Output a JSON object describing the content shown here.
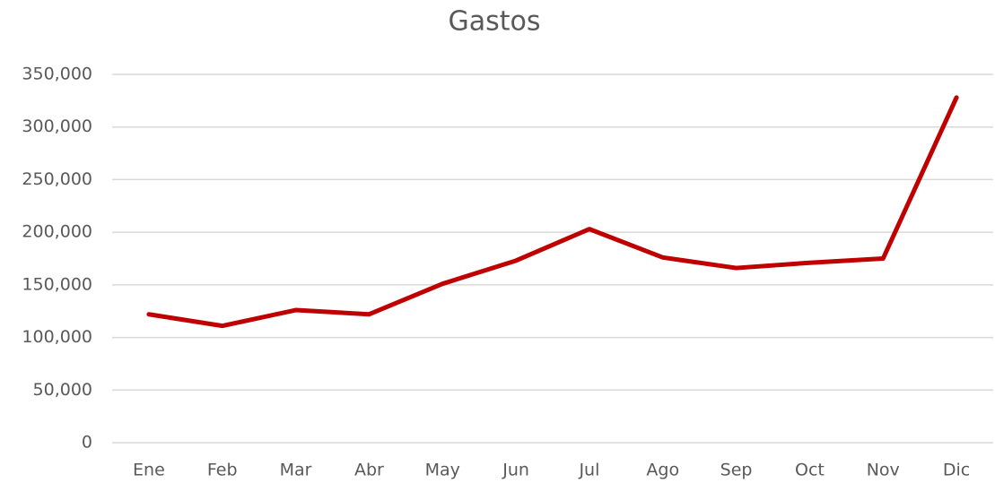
{
  "chart_data": {
    "type": "line",
    "title": "Gastos",
    "categories": [
      "Ene",
      "Feb",
      "Mar",
      "Abr",
      "May",
      "Jun",
      "Jul",
      "Ago",
      "Sep",
      "Oct",
      "Nov",
      "Dic"
    ],
    "series": [
      {
        "name": "Gastos",
        "color": "#c00000",
        "values": [
          122000,
          111000,
          126000,
          122000,
          151000,
          173000,
          203000,
          176000,
          166000,
          171000,
          175000,
          328000
        ]
      }
    ],
    "ylim": [
      0,
      350000
    ],
    "yticks": [
      0,
      {
        "value": 50000,
        "label": "50,000"
      },
      {
        "value": 100000,
        "label": "100,000"
      },
      {
        "value": 150000,
        "label": "150,000"
      },
      {
        "value": 200000,
        "label": "200,000"
      },
      {
        "value": 250000,
        "label": "250,000"
      },
      {
        "value": 300000,
        "label": "300,000"
      },
      {
        "value": 350000,
        "label": "350,000"
      }
    ],
    "grid": true
  }
}
